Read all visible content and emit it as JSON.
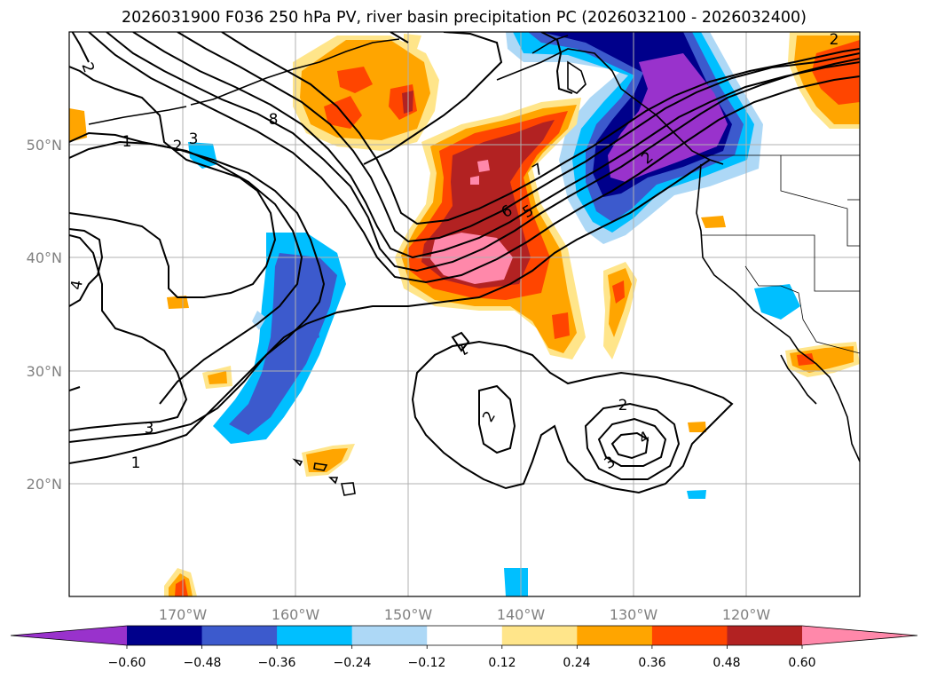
{
  "title": "2026031900 F036 250 hPa PV, river basin precipitation PC (2026032100 - 2026032400)",
  "lon_ticks": [
    "170°W",
    "160°W",
    "150°W",
    "140°W",
    "130°W",
    "120°W"
  ],
  "lat_ticks": [
    "50°N",
    "40°N",
    "30°N",
    "20°N"
  ],
  "pv_contour_labels": [
    "2",
    "1",
    "2",
    "3",
    "8",
    "4",
    "3",
    "1",
    "7",
    "6",
    "5",
    "2",
    "1",
    "2",
    "2",
    "4",
    "3",
    "2"
  ],
  "colorbar": {
    "ticks": [
      "−0.60",
      "−0.48",
      "−0.36",
      "−0.24",
      "−0.12",
      "0.12",
      "0.24",
      "0.36",
      "0.48",
      "0.60"
    ],
    "colors": [
      "#9932cc",
      "#00008b",
      "#3c5acd",
      "#00bfff",
      "#add8f6",
      "#ffffff",
      "#ffe58a",
      "#ffa500",
      "#ff4500",
      "#b22222",
      "#ff88aa"
    ]
  },
  "colors": {
    "grid": "#b0b0b0",
    "tick_label": "#808080",
    "contour": "#000000"
  }
}
